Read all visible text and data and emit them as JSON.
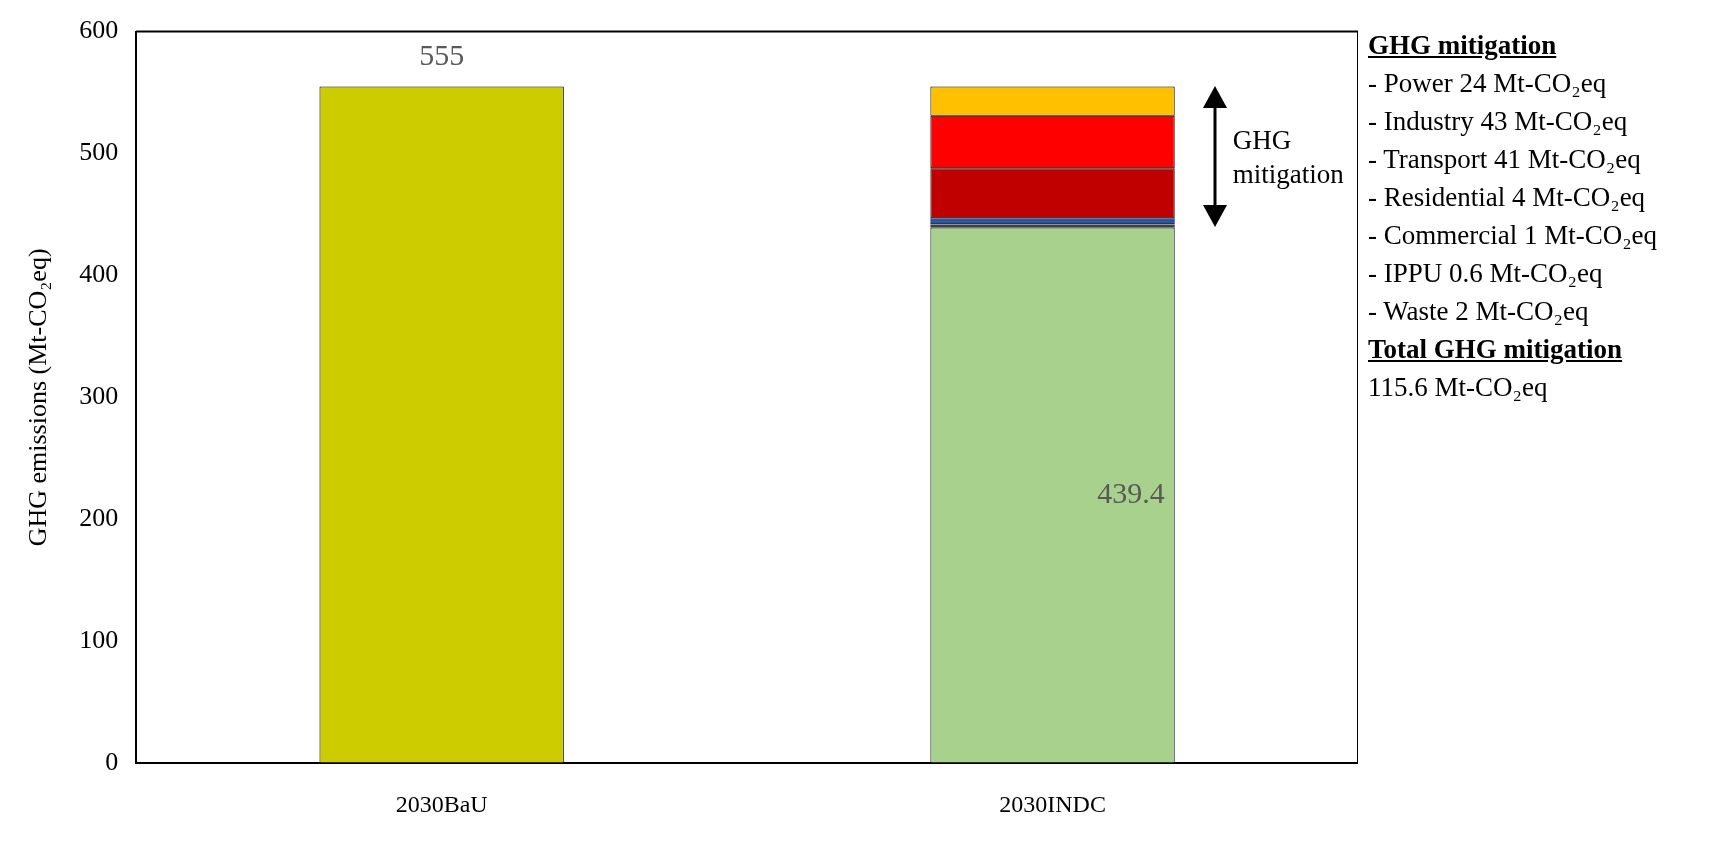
{
  "chart_data": {
    "type": "bar",
    "stacked": true,
    "ylabel": "GHG emissions (Mt-CO₂eq)",
    "categories": [
      "2030BaU",
      "2030INDC"
    ],
    "ylim": [
      0,
      600
    ],
    "yticks": [
      0,
      100,
      200,
      300,
      400,
      500,
      600
    ],
    "grid": false,
    "legend": false,
    "series": [
      {
        "color": "#cccc00",
        "values": [
          555,
          null
        ],
        "value_labels": [
          "555",
          null
        ]
      },
      {
        "color": "#a9d18e",
        "values": [
          null,
          439.4
        ],
        "value_labels": [
          null,
          "439.4"
        ]
      },
      {
        "color": "#404040",
        "values": [
          null,
          2
        ]
      },
      {
        "color": "#7f7f7f",
        "values": [
          null,
          0.6
        ]
      },
      {
        "color": "#1f3864",
        "values": [
          null,
          1
        ]
      },
      {
        "color": "#2f5597",
        "values": [
          null,
          4
        ]
      },
      {
        "color": "#c00000",
        "values": [
          null,
          41
        ]
      },
      {
        "color": "#ff0000",
        "values": [
          null,
          43
        ]
      },
      {
        "color": "#ffc000",
        "values": [
          null,
          24
        ]
      }
    ],
    "annotations": [
      "GHG mitigation",
      "GHG mitigation",
      "- Power 24 Mt-CO₂eq",
      "- Industry 43 Mt-CO₂eq",
      "- Transport 41 Mt-CO₂eq",
      "- Residential 4 Mt-CO₂eq",
      "- Commercial 1 Mt-CO₂eq",
      "- IPPU 0.6 Mt-CO₂eq",
      "- Waste 2 Mt-CO₂eq",
      "Total GHG mitigation",
      "115.6 Mt-CO₂eq"
    ]
  }
}
